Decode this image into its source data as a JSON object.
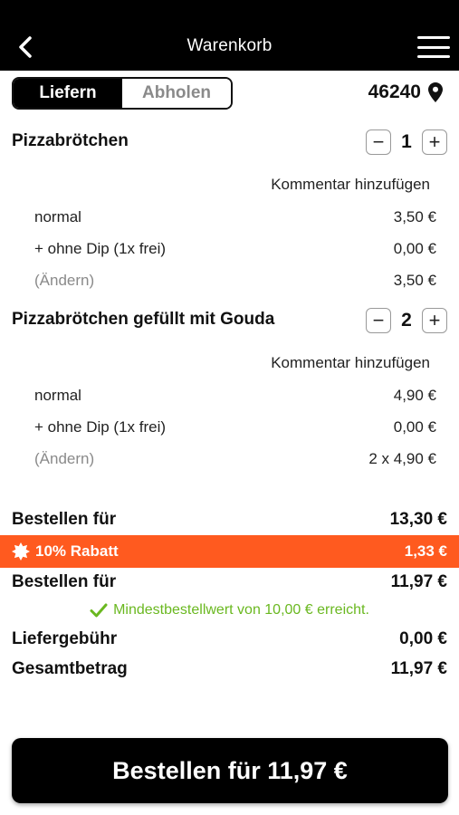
{
  "header": {
    "title": "Warenkorb",
    "back_icon": "chevron-left-icon",
    "menu_icon": "hamburger-menu-icon"
  },
  "delivery_toggle": {
    "options": [
      "Liefern",
      "Abholen"
    ],
    "selected": "Liefern"
  },
  "location": {
    "zip": "46240",
    "icon": "map-pin-icon"
  },
  "items": [
    {
      "name": "Pizzabrötchen",
      "quantity": "1",
      "comment_label": "Kommentar hinzufügen",
      "lines": [
        {
          "label": "normal",
          "price": "3,50 €"
        },
        {
          "label": "+ ohne Dip (1x frei)",
          "price": "0,00 €"
        },
        {
          "label": "(Ändern)",
          "price": "3,50 €"
        }
      ]
    },
    {
      "name": "Pizzabrötchen gefüllt mit Gouda",
      "quantity": "2",
      "comment_label": "Kommentar hinzufügen",
      "lines": [
        {
          "label": "normal",
          "price": "4,90 €"
        },
        {
          "label": "+ ohne Dip (1x frei)",
          "price": "0,00 €"
        },
        {
          "label": "(Ändern)",
          "price": "2 x 4,90 €"
        }
      ]
    }
  ],
  "stepper": {
    "minus": "−",
    "plus": "+"
  },
  "summary": {
    "subtotal_label": "Bestellen für",
    "subtotal_value": "13,30 €",
    "discount_label": "10% Rabatt",
    "discount_value": "1,33 €",
    "discount_icon": "badge-icon",
    "after_discount_label": "Bestellen für",
    "after_discount_value": "11,97 €",
    "minimum_note": "Mindestbestellwert von 10,00 € erreicht.",
    "minimum_icon": "check-icon",
    "delivery_fee_label": "Liefergebühr",
    "delivery_fee_value": "0,00 €",
    "total_label": "Gesamtbetrag",
    "total_value": "11,97 €"
  },
  "order_button": {
    "label": "Bestellen für 11,97 €"
  },
  "colors": {
    "accent": "#ff5a1f",
    "success": "#6ab820",
    "dark": "#000000"
  }
}
